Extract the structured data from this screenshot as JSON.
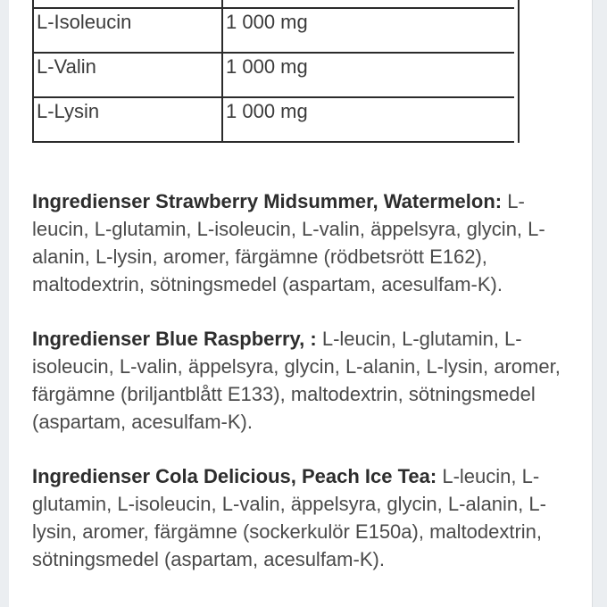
{
  "page": {
    "colors": {
      "background": "#ffffff",
      "gutter": "#ebeef1",
      "gutter_line": "#d9dce0",
      "table_border": "#2b2b2b",
      "table_text": "#3b3b3b",
      "heading_text": "#2d2d2d",
      "body_text": "#4a4a4a"
    }
  },
  "nutrition_table": {
    "rows": [
      {
        "label": "",
        "value": ""
      },
      {
        "label": "L-Isoleucin",
        "value": "1 000 mg"
      },
      {
        "label": "L-Valin",
        "value": "1 000 mg"
      },
      {
        "label": "L-Lysin",
        "value": "1 000 mg"
      }
    ]
  },
  "ingredients_sections": [
    {
      "heading": "Ingredienser Strawberry Midsummer, Watermelon:",
      "body": "L-leucin, L-glutamin, L-isoleucin, L-valin, äppelsyra, glycin, L-alanin, L-lysin, aromer, färgämne (rödbetsrött E162), maltodextrin, sötningsmedel (aspartam, acesulfam-K)."
    },
    {
      "heading": "Ingredienser Blue Raspberry, :",
      "body": "L-leucin, L-glutamin, L-isoleucin, L-valin, äppelsyra, glycin, L-alanin, L-lysin, aromer, färgämne (briljantblått E133), maltodextrin, sötningsmedel (aspartam, acesulfam-K)."
    },
    {
      "heading": "Ingredienser Cola Delicious, Peach Ice Tea:",
      "body": "L-leucin, L-glutamin, L-isoleucin, L-valin, äppelsyra, glycin, L-alanin, L-lysin, aromer, färgämne (sockerkulör E150a), maltodextrin, sötningsmedel (aspartam, acesulfam-K)."
    }
  ]
}
